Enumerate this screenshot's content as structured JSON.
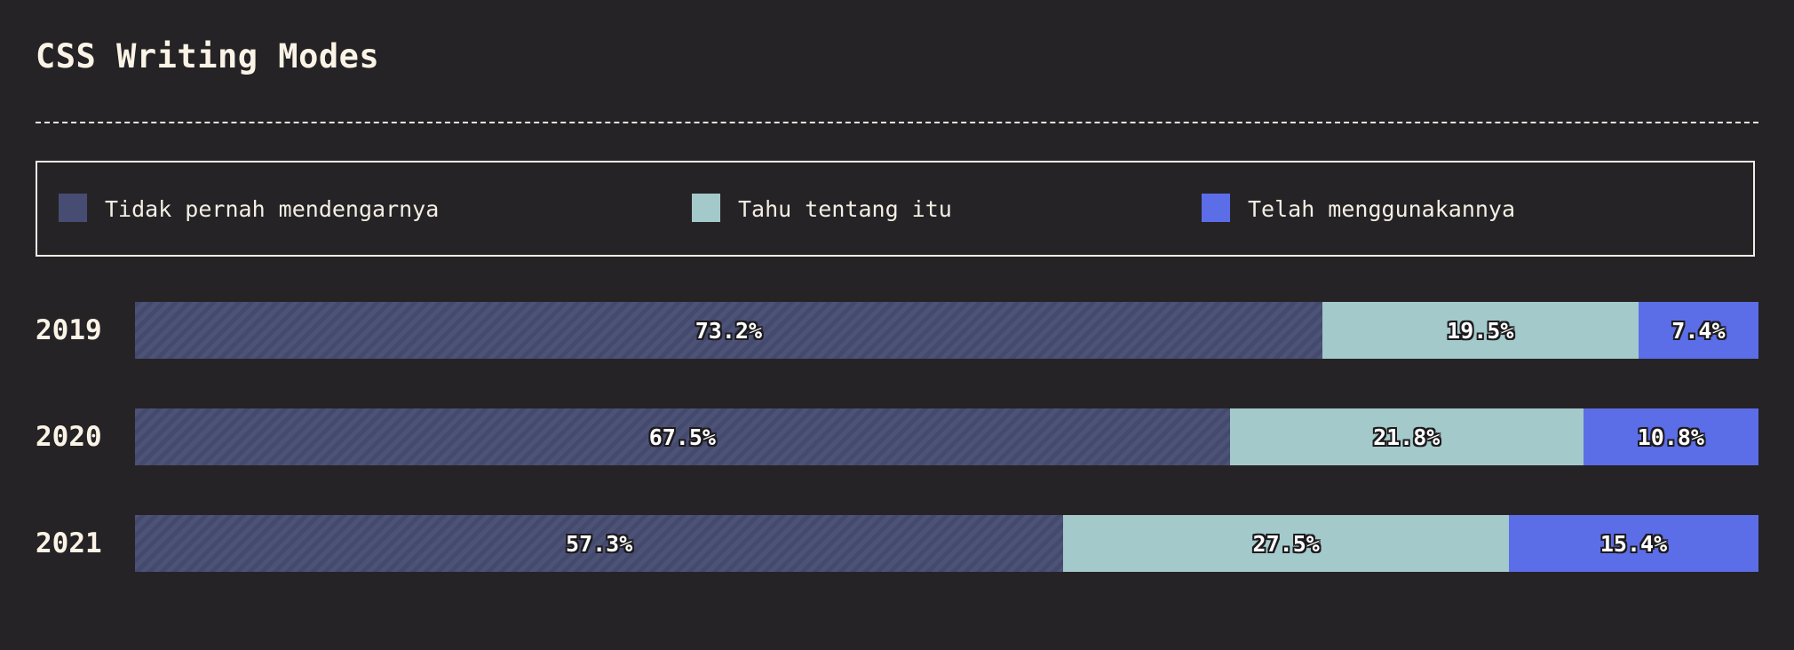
{
  "title": "CSS Writing Modes",
  "legend": [
    {
      "label": "Tidak pernah mendengarnya",
      "color": "#474c72"
    },
    {
      "label": "Tahu tentang itu",
      "color": "#a3c9cb"
    },
    {
      "label": "Telah menggunakannya",
      "color": "#5c6de8"
    }
  ],
  "chart_data": {
    "type": "bar",
    "orientation": "horizontal",
    "stacked": true,
    "categories": [
      "2019",
      "2020",
      "2021"
    ],
    "series": [
      {
        "name": "Tidak pernah mendengarnya",
        "values": [
          73.2,
          67.5,
          57.3
        ],
        "labels": [
          "73.2%",
          "67.5%",
          "57.3%"
        ]
      },
      {
        "name": "Tahu tentang itu",
        "values": [
          19.5,
          21.8,
          27.5
        ],
        "labels": [
          "19.5%",
          "21.8%",
          "27.5%"
        ]
      },
      {
        "name": "Telah menggunakannya",
        "values": [
          7.4,
          10.8,
          15.4
        ],
        "labels": [
          "7.4%",
          "10.8%",
          "15.4%"
        ]
      }
    ],
    "xlim": [
      0,
      100
    ],
    "legend_position": "top",
    "grid": false
  }
}
